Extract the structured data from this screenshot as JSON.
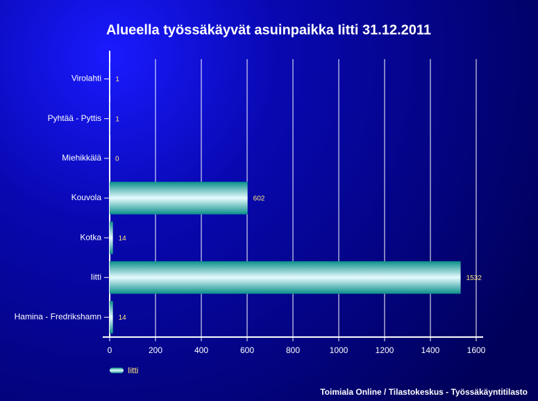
{
  "chart_data": {
    "type": "bar",
    "title": "Alueella työssäkäyvät asuinpaikka Iitti 31.12.2011",
    "categories": [
      "Virolahti",
      "Pyhtää - Pyttis",
      "Miehikkälä",
      "Kouvola",
      "Kotka",
      "Iitti",
      "Hamina - Fredrikshamn"
    ],
    "series": [
      {
        "name": "Iitti",
        "color": "#0a8f8a",
        "values": [
          1,
          1,
          0,
          602,
          14,
          1532,
          14
        ]
      }
    ],
    "xlim": [
      0,
      1600
    ],
    "xticks": [
      0,
      200,
      400,
      600,
      800,
      1000,
      1200,
      1400,
      1600
    ],
    "grid": true,
    "legend": "bottom-left",
    "source": "Toimiala Online / Tilastokeskus - Työssäkäyntitilasto"
  }
}
